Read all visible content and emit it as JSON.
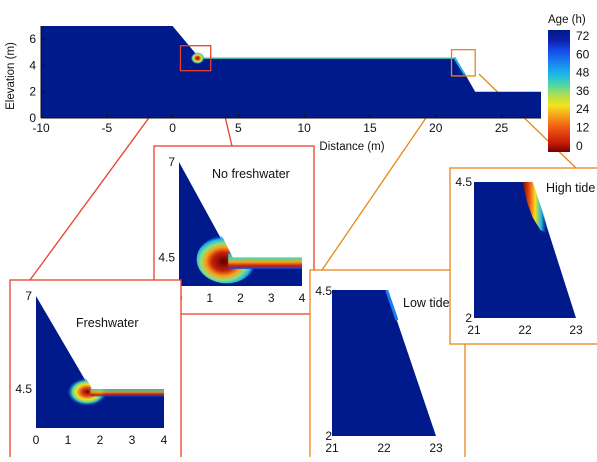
{
  "chart_data": [
    {
      "type": "heatmap",
      "ylabel": "Elevation (m)",
      "xlabel": "Distance (m)",
      "xlim": [
        -10,
        28
      ],
      "ylim": [
        0,
        7
      ],
      "xticks": [
        -10,
        -5,
        0,
        5,
        10,
        15,
        20,
        25
      ],
      "yticks": [
        0,
        2,
        4,
        6
      ],
      "domain_outline": [
        [
          -10,
          0
        ],
        [
          -10,
          7
        ],
        [
          0,
          7
        ],
        [
          2,
          4.6
        ],
        [
          21.5,
          4.6
        ],
        [
          23,
          2
        ],
        [
          28,
          2
        ],
        [
          28,
          0
        ]
      ],
      "young_water_zones": [
        "inland seepage corner near x≈2 m",
        "seaward beach face near x≈21.5–22 m"
      ]
    },
    {
      "type": "heatmap",
      "title": "No freshwater",
      "xlim": [
        0,
        4
      ],
      "ylim": [
        3.7,
        7
      ],
      "xticks": [
        0,
        1,
        2,
        3,
        4
      ],
      "yticks": [
        7,
        4.5
      ]
    },
    {
      "type": "heatmap",
      "title": "Freshwater",
      "xlim": [
        0,
        4
      ],
      "ylim": [
        3.5,
        7
      ],
      "xticks": [
        0,
        1,
        2,
        3,
        4
      ],
      "yticks": [
        7,
        4.5
      ]
    },
    {
      "type": "heatmap",
      "title": "Low tide",
      "xlim": [
        21,
        23
      ],
      "ylim": [
        2,
        4.5
      ],
      "xticks": [
        21,
        22,
        23
      ],
      "yticks": [
        4.5,
        2
      ]
    },
    {
      "type": "heatmap",
      "title": "High tide",
      "xlim": [
        21,
        23
      ],
      "ylim": [
        2,
        4.5
      ],
      "xticks": [
        21,
        22,
        23
      ],
      "yticks": [
        4.5,
        2
      ]
    }
  ],
  "colorbar": {
    "title": "Age (h)",
    "ticks": [
      72,
      60,
      48,
      36,
      24,
      12,
      0
    ],
    "colors": [
      "#7a0000",
      "#c81e0a",
      "#f05a14",
      "#f7a21c",
      "#f5e21e",
      "#b4e048",
      "#4fd6a6",
      "#1bb6e8",
      "#1a7ef0",
      "#1446e6",
      "#0c1fa8",
      "#001a8c"
    ]
  },
  "colors": {
    "background_age": "#001a8c",
    "red_box": "#e8402a",
    "orange_box": "#e8861a"
  }
}
